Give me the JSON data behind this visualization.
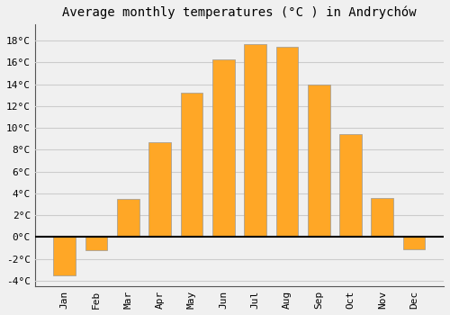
{
  "title": "Average monthly temperatures (°C ) in Andrychów",
  "months": [
    "Jan",
    "Feb",
    "Mar",
    "Apr",
    "May",
    "Jun",
    "Jul",
    "Aug",
    "Sep",
    "Oct",
    "Nov",
    "Dec"
  ],
  "temperatures": [
    -3.5,
    -1.2,
    3.5,
    8.7,
    13.2,
    16.3,
    17.7,
    17.4,
    14.0,
    9.4,
    3.6,
    -1.1
  ],
  "bar_color": "#FFA726",
  "bar_edge_color": "#999999",
  "ylim": [
    -4.5,
    19.5
  ],
  "yticks": [
    -4,
    -2,
    0,
    2,
    4,
    6,
    8,
    10,
    12,
    14,
    16,
    18
  ],
  "ytick_labels": [
    "-4°C",
    "-2°C",
    "0°C",
    "2°C",
    "4°C",
    "6°C",
    "8°C",
    "10°C",
    "12°C",
    "14°C",
    "16°C",
    "18°C"
  ],
  "background_color": "#f0f0f0",
  "grid_color": "#cccccc",
  "title_fontsize": 10,
  "tick_fontsize": 8,
  "zero_line_color": "#000000",
  "bar_width": 0.7,
  "spine_color": "#555555"
}
